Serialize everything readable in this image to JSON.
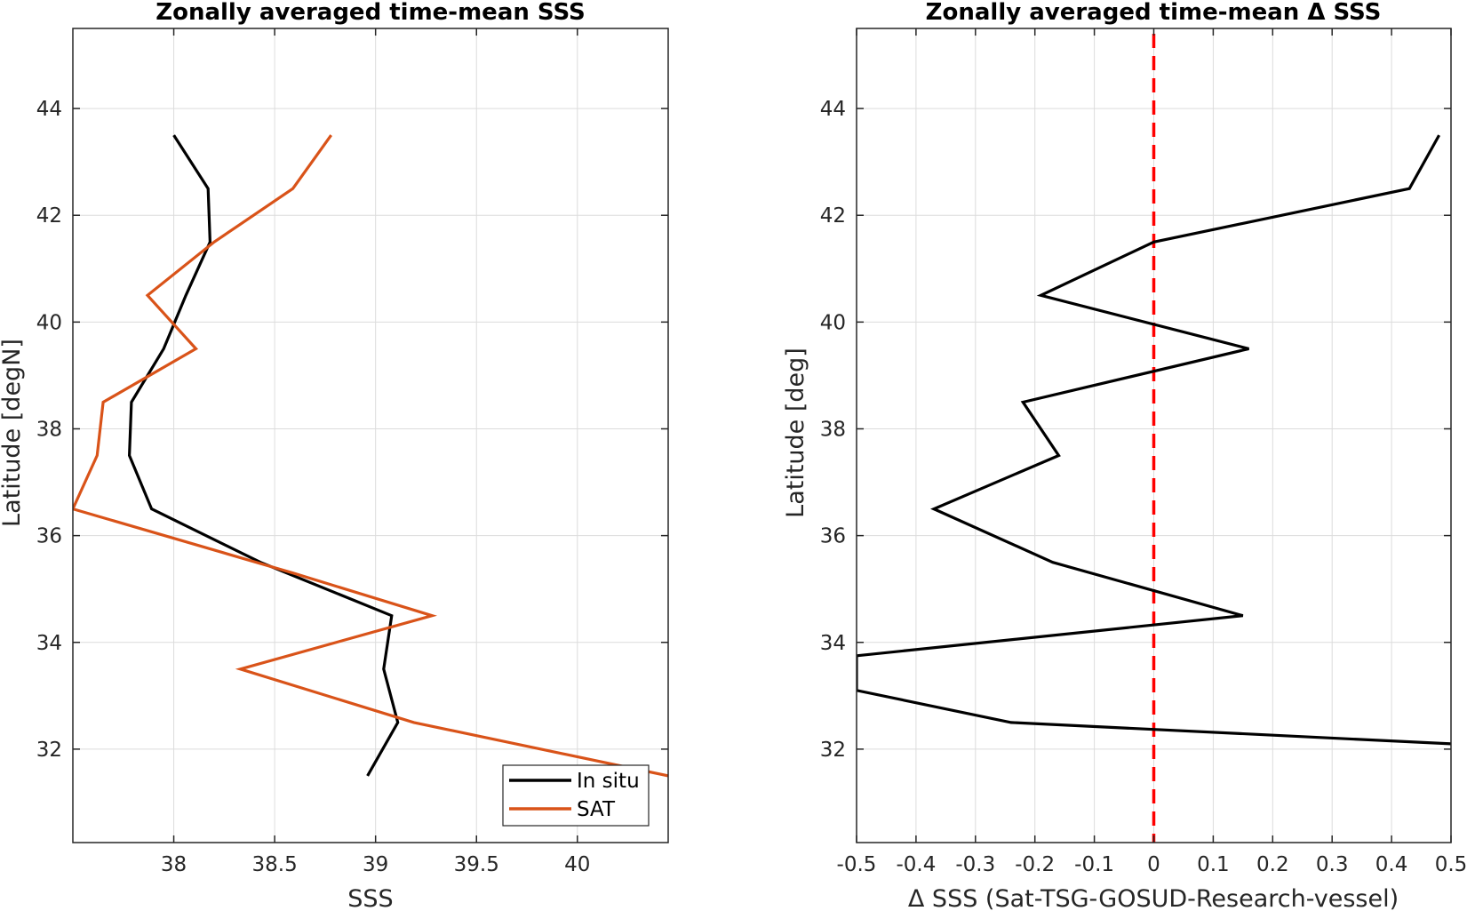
{
  "chart_data": [
    {
      "type": "line",
      "title": "Zonally averaged time-mean SSS",
      "xlabel": "SSS",
      "ylabel": "Latitude [degN]",
      "xlim": [
        37.5,
        40.45
      ],
      "ylim": [
        30.25,
        45.5
      ],
      "xticks": [
        38,
        38.5,
        39,
        39.5,
        40
      ],
      "xtick_labels": [
        "38",
        "38.5",
        "39",
        "39.5",
        "40"
      ],
      "yticks": [
        32,
        34,
        36,
        38,
        40,
        42,
        44
      ],
      "ytick_labels": [
        "32",
        "34",
        "36",
        "38",
        "40",
        "42",
        "44"
      ],
      "grid": true,
      "legend_position": "bottom-right",
      "series": [
        {
          "name": "In situ",
          "color": "#000000",
          "x": [
            38.0,
            38.17,
            38.18,
            38.06,
            37.95,
            37.79,
            37.78,
            37.89,
            38.43,
            39.08,
            39.04,
            39.11,
            38.96
          ],
          "y": [
            43.5,
            42.5,
            41.5,
            40.5,
            39.5,
            38.5,
            37.5,
            36.5,
            35.5,
            34.5,
            33.5,
            32.5,
            31.5
          ]
        },
        {
          "name": "SAT",
          "color": "#d95319",
          "x": [
            38.78,
            38.59,
            38.2,
            37.87,
            38.11,
            37.65,
            37.62,
            37.5,
            38.59,
            39.28,
            38.33,
            39.19,
            40.45
          ],
          "y": [
            43.5,
            42.5,
            41.5,
            40.5,
            39.5,
            38.5,
            37.5,
            36.5,
            35.3,
            34.5,
            33.5,
            32.5,
            31.5
          ]
        }
      ]
    },
    {
      "type": "line",
      "title": "Zonally averaged time-mean Δ SSS",
      "xlabel": "Δ SSS (Sat-TSG-GOSUD-Research-vessel)",
      "ylabel": "Latitude [deg]",
      "xlim": [
        -0.5,
        0.5
      ],
      "ylim": [
        30.25,
        45.5
      ],
      "xticks": [
        -0.5,
        -0.4,
        -0.3,
        -0.2,
        -0.1,
        0,
        0.1,
        0.2,
        0.3,
        0.4,
        0.5
      ],
      "xtick_labels": [
        "-0.5",
        "-0.4",
        "-0.3",
        "-0.2",
        "-0.1",
        "0",
        "0.1",
        "0.2",
        "0.3",
        "0.4",
        "0.5"
      ],
      "yticks": [
        32,
        34,
        36,
        38,
        40,
        42,
        44
      ],
      "ytick_labels": [
        "32",
        "34",
        "36",
        "38",
        "40",
        "42",
        "44"
      ],
      "grid": true,
      "reference_line": {
        "x": 0,
        "color": "#ff0000",
        "style": "dashed"
      },
      "series": [
        {
          "color": "#000000",
          "x": [
            0.48,
            0.43,
            0.0,
            -0.19,
            0.16,
            -0.22,
            -0.16,
            -0.37,
            -0.17,
            0.15,
            -0.5,
            -0.5,
            -0.24,
            0.5
          ],
          "y": [
            43.5,
            42.5,
            41.5,
            40.5,
            39.5,
            38.5,
            37.5,
            36.5,
            35.5,
            34.5,
            33.75,
            33.1,
            32.5,
            32.1
          ]
        }
      ]
    }
  ]
}
